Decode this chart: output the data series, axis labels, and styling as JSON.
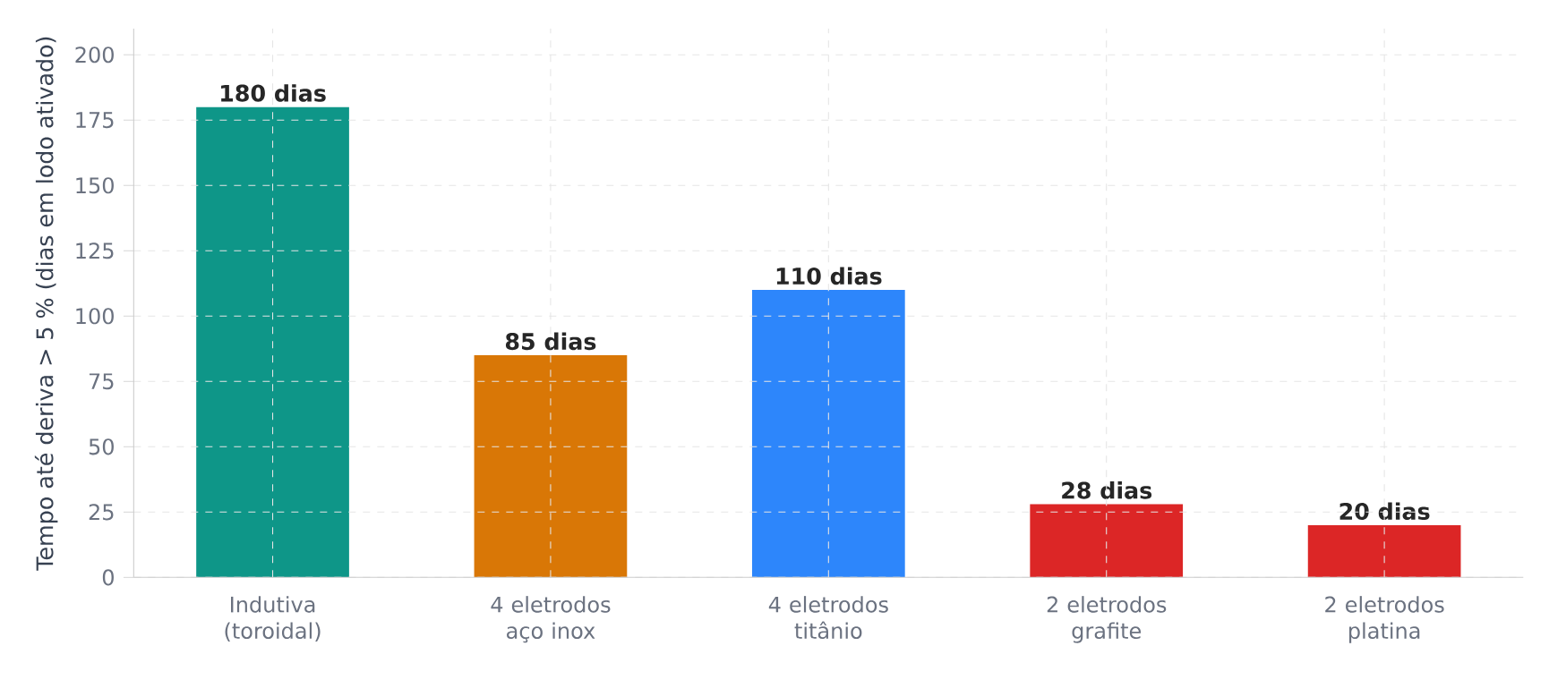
{
  "chart_data": {
    "type": "bar",
    "ylabel": "Tempo até deriva > 5 % (dias em lodo ativado)",
    "categories": [
      "Indutiva (toroidal)",
      "4 eletrodos aço inox",
      "4 eletrodos titânio",
      "2 eletrodos grafite",
      "2 eletrodos platina"
    ],
    "values": [
      180,
      85,
      110,
      28,
      20
    ],
    "colors": [
      "#0e9688",
      "#d97706",
      "#2d86fb",
      "#dc2626",
      "#dc2626"
    ],
    "value_labels": [
      "180 dias",
      "85 dias",
      "110 dias",
      "28 dias",
      "20 dias"
    ],
    "ylim": [
      0,
      210
    ],
    "yticks": [
      0,
      25,
      50,
      75,
      100,
      125,
      150,
      175,
      200
    ],
    "grid": true
  }
}
